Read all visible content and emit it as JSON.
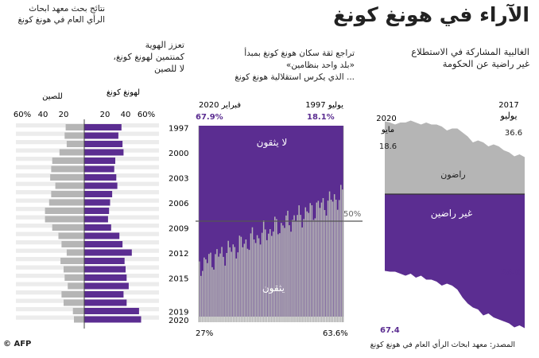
{
  "title": "الآراء في هونغ كونغ",
  "panel1": {
    "subtitle": [
      "الغالبية المشاركة في الاستطلاع",
      "غير راضية عن الحكومة"
    ],
    "start_month": "يوليو",
    "end_month": "مايو",
    "start_year": "2017",
    "end_year": "2020",
    "sat_start": "18.6",
    "sat_end": "36.6",
    "dis_start": "67.4",
    "dis_end": "38.6",
    "label_sat": "راضون",
    "label_dis": "غير راضين"
  },
  "panel2": {
    "subtitle": [
      "تراجع ثقة سكان هونغ كونغ بمبدأ",
      "«بلد واحد بنظامين»",
      "... الذي يكرس استقلالية هونغ كونغ"
    ],
    "start_label": "يوليو 1997",
    "end_label": "فبراير 2020",
    "top_start": "18.1%",
    "top_end": "67.9%",
    "bot_start": "63.6%",
    "bot_end": "27%",
    "fifty": "50%",
    "label_distrust": "لا يثقون",
    "label_trust": "يثقون"
  },
  "panel3": {
    "subtitle1": [
      "نتائج بحث معهد ابحاث",
      "الرأي العام في هونغ كونغ"
    ],
    "subtitle2": [
      "تعزز الهوية",
      "كمنتمين لهونغ كونغ،",
      "لا للصين"
    ],
    "col_hk": "لهونغ كونغ",
    "col_cn": "للصين",
    "years": [
      "1997",
      "2000",
      "2003",
      "2006",
      "2009",
      "2012",
      "2015",
      "2019",
      "2020"
    ],
    "ticks_hk": [
      "20",
      "40",
      "60%"
    ],
    "ticks_cn": [
      "60%",
      "40",
      "20"
    ]
  },
  "source": "المصدر: معهد ابحاث الرأي العام في هونغ كونغ",
  "credit": "© AFP",
  "colors": {
    "purple": "#5b2d91",
    "gray": "#b5b5b5",
    "lightgray": "#d9d9d9"
  },
  "chart_data": [
    {
      "type": "area",
      "title": "الغالبية المشاركة في الاستطلاع غير راضية عن الحكومة",
      "x_range": [
        "2017-07",
        "2020-05"
      ],
      "series": [
        {
          "name": "راضون",
          "values": [
            18.6,
            20,
            19,
            21,
            22,
            24,
            25,
            24,
            26,
            27,
            26,
            29,
            31,
            33,
            33,
            32,
            34,
            35,
            35,
            36,
            35,
            36,
            37,
            36,
            36,
            35,
            36,
            36.6
          ],
          "unit": "%"
        },
        {
          "name": "غير راضين",
          "values": [
            67.4,
            66,
            67,
            65,
            64,
            63,
            62,
            60,
            61,
            58,
            57,
            55,
            52,
            48,
            46,
            45,
            46,
            44,
            43,
            43,
            41,
            42,
            40,
            41,
            40,
            39,
            39,
            38.6
          ],
          "unit": "%"
        }
      ]
    },
    {
      "type": "bar",
      "title": "تراجع ثقة سكان هونغ كونغ بمبدأ «بلد واحد بنظامين»",
      "x_range": [
        "1997-07",
        "2020-02"
      ],
      "series": [
        {
          "name": "لا يثقون",
          "start": 18.1,
          "end": 67.9,
          "unit": "%"
        },
        {
          "name": "يثقون",
          "start": 63.6,
          "end": 27,
          "unit": "%"
        }
      ]
    },
    {
      "type": "bar",
      "title": "تعزز الهوية كمنتمين لهونغ كونغ، لا للصين",
      "categories": [
        "1997",
        "1998",
        "1999",
        "2000",
        "2001",
        "2002",
        "2003",
        "2004",
        "2005",
        "2006",
        "2007",
        "2008",
        "2009",
        "2010",
        "2011",
        "2012",
        "2013",
        "2014",
        "2015",
        "2016",
        "2017",
        "2018",
        "2019",
        "2020"
      ],
      "series": [
        {
          "name": "لهونغ كونغ",
          "values": [
            36,
            33,
            37,
            38,
            30,
            29,
            31,
            32,
            27,
            25,
            24,
            23,
            26,
            34,
            37,
            46,
            39,
            40,
            41,
            43,
            38,
            41,
            53,
            55
          ]
        },
        {
          "name": "للصين",
          "values": [
            18,
            19,
            17,
            24,
            31,
            32,
            33,
            28,
            32,
            34,
            38,
            38,
            31,
            25,
            22,
            17,
            23,
            20,
            19,
            16,
            22,
            20,
            11,
            10
          ]
        }
      ],
      "xlim": [
        0,
        60
      ]
    }
  ]
}
